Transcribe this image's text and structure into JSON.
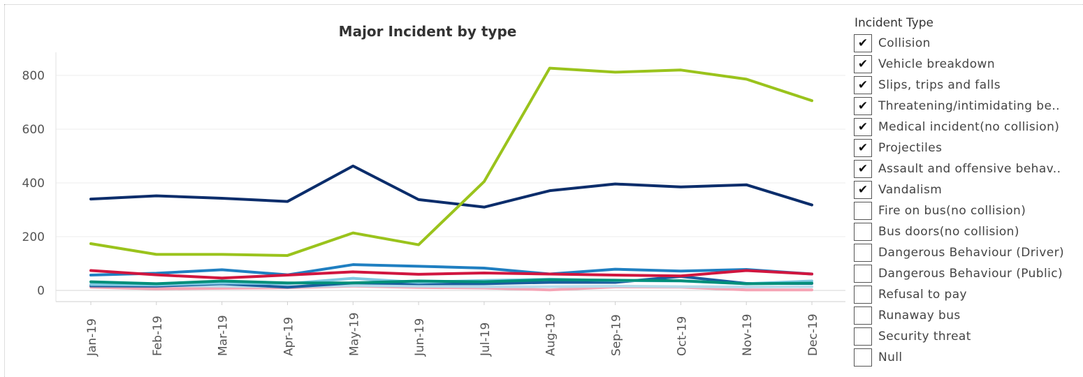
{
  "chart_data": {
    "type": "line",
    "title": "Major Incident by type",
    "xlabel": "",
    "ylabel": "",
    "categories": [
      "Jan-19",
      "Feb-19",
      "Mar-19",
      "Apr-19",
      "May-19",
      "Jun-19",
      "Jul-19",
      "Aug-19",
      "Sep-19",
      "Oct-19",
      "Nov-19",
      "Dec-19"
    ],
    "ylim": [
      -15,
      900
    ],
    "yticks": [
      0,
      200,
      400,
      600,
      800
    ],
    "grid": true,
    "legend_position": "right",
    "series": [
      {
        "color": "#9ac31c",
        "values": [
          174,
          134,
          134,
          130,
          214,
          170,
          405,
          827,
          812,
          820,
          786,
          706
        ]
      },
      {
        "color": "#0b2d6b",
        "values": [
          340,
          352,
          343,
          331,
          463,
          338,
          310,
          371,
          396,
          385,
          393,
          318
        ]
      },
      {
        "color": "#d0163f",
        "values": [
          74,
          58,
          46,
          57,
          69,
          60,
          65,
          61,
          57,
          54,
          74,
          61
        ]
      },
      {
        "color": "#1f7fc1",
        "values": [
          57,
          64,
          77,
          58,
          96,
          90,
          83,
          61,
          79,
          72,
          78,
          61
        ]
      },
      {
        "color": "#008f7a",
        "values": [
          32,
          25,
          35,
          28,
          28,
          35,
          32,
          40,
          38,
          36,
          25,
          27
        ]
      },
      {
        "color": "#7ec9e2",
        "values": [
          22,
          20,
          28,
          25,
          45,
          30,
          37,
          42,
          37,
          35,
          25,
          35
        ]
      },
      {
        "color": "#1a5e9e",
        "values": [
          17,
          16,
          25,
          12,
          28,
          25,
          25,
          30,
          30,
          52,
          26,
          26
        ]
      },
      {
        "color": "#b7dceb",
        "values": [
          20,
          18,
          16,
          14,
          18,
          16,
          14,
          14,
          16,
          14,
          13,
          14
        ]
      },
      {
        "color": "#f6a3b4",
        "values": [
          12,
          6,
          8,
          10,
          16,
          11,
          9,
          2,
          13,
          12,
          2,
          2
        ]
      }
    ]
  },
  "legend": {
    "title": "Incident Type",
    "check_glyph": "✔",
    "items": [
      {
        "label": "Collision",
        "checked": true
      },
      {
        "label": "Vehicle breakdown",
        "checked": true
      },
      {
        "label": "Slips, trips and falls",
        "checked": true
      },
      {
        "label": "Threatening/intimidating be..",
        "checked": true
      },
      {
        "label": "Medical incident(no collision)",
        "checked": true
      },
      {
        "label": "Projectiles",
        "checked": true
      },
      {
        "label": "Assault and offensive behav..",
        "checked": true
      },
      {
        "label": "Vandalism",
        "checked": true
      },
      {
        "label": "Fire on bus(no collision)",
        "checked": false
      },
      {
        "label": "Bus doors(no collision)",
        "checked": false
      },
      {
        "label": "Dangerous Behaviour (Driver)",
        "checked": false
      },
      {
        "label": "Dangerous Behaviour (Public)",
        "checked": false
      },
      {
        "label": "Refusal to pay",
        "checked": false
      },
      {
        "label": "Runaway bus",
        "checked": false
      },
      {
        "label": "Security threat",
        "checked": false
      },
      {
        "label": "Null",
        "checked": false
      }
    ]
  }
}
